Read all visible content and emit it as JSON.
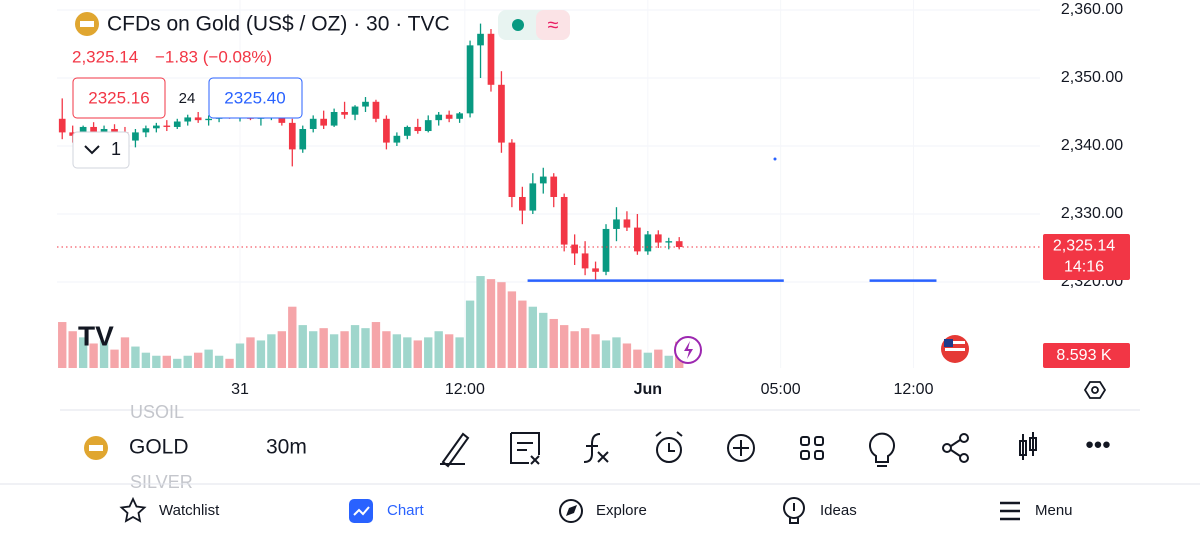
{
  "header": {
    "title": "CFDs on Gold (US$ / OZ) · 30 · TVC",
    "last": "2,325.14",
    "change": "−1.83 (−0.08%)",
    "bid": "2325.16",
    "spread": "24",
    "ask": "2325.40",
    "collapse": "1"
  },
  "chart_data": {
    "type": "candlestick",
    "up_color": "#089981",
    "down_color": "#f23645",
    "up_volume_color": "#9fd6cc",
    "down_volume_color": "#f5a5a9",
    "xlim": [
      -0.5,
      93.5
    ],
    "ylim": [
      2307.35,
      2361.47
    ],
    "volume_lim": [
      0,
      31
    ],
    "yticks": [
      {
        "value": 2360,
        "label": "2,360.00"
      },
      {
        "value": 2350,
        "label": "2,350.00"
      },
      {
        "value": 2340,
        "label": "2,340.00"
      },
      {
        "value": 2330,
        "label": "2,330.00"
      },
      {
        "value": 2320,
        "label": "2,320.00"
      }
    ],
    "xticks": [
      {
        "value": 17,
        "label": "31"
      },
      {
        "value": 38.5,
        "label": "12:00"
      },
      {
        "value": 56,
        "label": "Jun"
      },
      {
        "value": 68.7,
        "label": "05:00"
      },
      {
        "value": 81.4,
        "label": "12:00"
      }
    ],
    "open": [
      2344,
      2342,
      2341.5,
      2342.8,
      2341.8,
      2342.5,
      2342,
      2340.8,
      2342,
      2342.6,
      2343,
      2342.8,
      2343.6,
      2344.2,
      2343.8,
      2344,
      2344.8,
      2344.3,
      2344.6,
      2344,
      2344.4,
      2345.2,
      2343.4,
      2339.5,
      2342.5,
      2344,
      2343,
      2345,
      2344.6,
      2345.8,
      2346.5,
      2344,
      2340.5,
      2341.5,
      2342.8,
      2342.2,
      2343.8,
      2344.6,
      2344,
      2344.8,
      2354.8,
      2356.5,
      2349,
      2340.5,
      2332.5,
      2330.5,
      2334.5,
      2335.5,
      2332.5,
      2325.5,
      2324.2,
      2322,
      2321.5,
      2327.8,
      2329.2,
      2328,
      2324.5,
      2327,
      2325.8,
      2326
    ],
    "high": [
      2347,
      2343,
      2343,
      2343.5,
      2343,
      2343.2,
      2342.8,
      2342.5,
      2343,
      2343.4,
      2343.8,
      2344,
      2344.6,
      2345,
      2344.5,
      2345.2,
      2345.5,
      2345,
      2345.3,
      2344.8,
      2345.6,
      2345.8,
      2344,
      2343,
      2344.5,
      2345.2,
      2345.5,
      2346.5,
      2346,
      2347.2,
      2346.8,
      2344.5,
      2342,
      2343,
      2344,
      2344.5,
      2345,
      2345.2,
      2345,
      2355.5,
      2358,
      2357.2,
      2351,
      2341,
      2334,
      2336,
      2336.8,
      2336,
      2333,
      2327,
      2326,
      2323,
      2328.5,
      2331,
      2330.4,
      2330,
      2327.5,
      2327.6,
      2326.5,
      2326.6
    ],
    "low": [
      2341,
      2340.5,
      2341,
      2341,
      2341,
      2341.5,
      2340,
      2339.8,
      2341.3,
      2342,
      2342.2,
      2342.5,
      2343,
      2343.4,
      2343,
      2343.5,
      2344,
      2343.6,
      2343.8,
      2343,
      2343.8,
      2343,
      2337,
      2339,
      2342,
      2342.5,
      2342.8,
      2344,
      2343.8,
      2345,
      2343.5,
      2339.5,
      2340,
      2341,
      2341.8,
      2342,
      2343,
      2343.5,
      2343.4,
      2344.2,
      2350,
      2348,
      2339,
      2331,
      2328.5,
      2330,
      2333,
      2331,
      2324.5,
      2322.5,
      2321,
      2320.3,
      2321,
      2326,
      2327.5,
      2324,
      2324,
      2325,
      2324.8,
      2324.8
    ],
    "close": [
      2342,
      2341.5,
      2342.8,
      2341.8,
      2342.5,
      2342,
      2340.8,
      2342,
      2342.6,
      2343,
      2342.8,
      2343.6,
      2344.2,
      2343.8,
      2344,
      2344.8,
      2344.3,
      2344.6,
      2344,
      2344.4,
      2345.2,
      2343.4,
      2339.5,
      2342.5,
      2344,
      2343,
      2345,
      2344.6,
      2345.8,
      2346.5,
      2344,
      2340.5,
      2341.5,
      2342.8,
      2342.2,
      2343.8,
      2344.6,
      2344,
      2344.8,
      2354.8,
      2356.5,
      2349,
      2340.5,
      2332.5,
      2330.5,
      2334.5,
      2335.5,
      2332.5,
      2325.5,
      2324.2,
      2322,
      2321.5,
      2327.8,
      2329.2,
      2328,
      2324.5,
      2327,
      2325.8,
      2326,
      2325.14
    ],
    "volume": [
      15,
      12,
      10,
      8,
      9,
      6,
      10,
      7,
      5,
      4,
      4,
      3,
      4,
      5,
      6,
      4,
      3,
      8,
      10,
      9,
      11,
      12,
      20,
      14,
      12,
      13,
      11,
      12,
      14,
      13,
      15,
      12,
      11,
      10,
      9,
      10,
      12,
      11,
      10,
      22,
      30,
      29,
      28,
      25,
      22,
      20,
      18,
      16,
      14,
      12,
      13,
      11,
      9,
      10,
      8,
      6,
      5,
      6,
      4,
      8.593
    ],
    "hline": {
      "value": 2320.2,
      "color": "#2962ff"
    },
    "last_label": "2,325.14",
    "countdown": "14:16",
    "volume_label": "8.593 K"
  },
  "toolbar": {
    "symbols": [
      "USOIL",
      "GOLD",
      "SILVER"
    ],
    "interval": "30m"
  },
  "nav": [
    "Watchlist",
    "Chart",
    "Explore",
    "Ideas",
    "Menu"
  ]
}
